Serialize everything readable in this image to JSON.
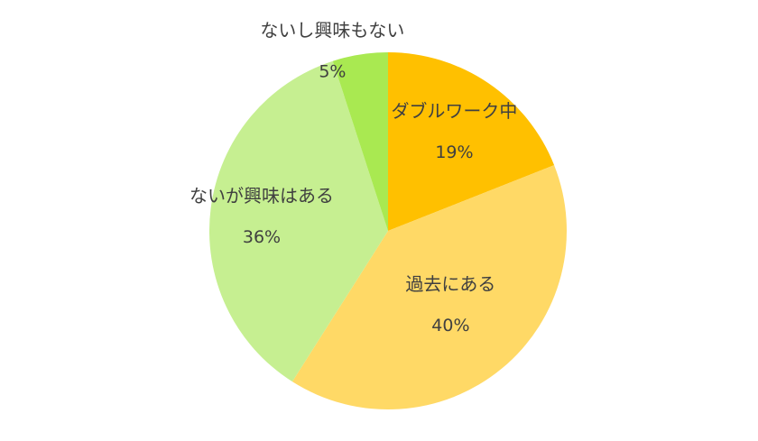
{
  "chart_data": {
    "type": "pie",
    "title": "",
    "slices": [
      {
        "label": "ダブルワーク中",
        "value": 19,
        "value_label": "19%",
        "color": "#FFC000"
      },
      {
        "label": "過去にある",
        "value": 40,
        "value_label": "40%",
        "color": "#FFD966"
      },
      {
        "label": "ないが興味はある",
        "value": 36,
        "value_label": "36%",
        "color": "#C6EF91"
      },
      {
        "label": "ないし興味もない",
        "value": 5,
        "value_label": "5%",
        "color": "#A9E951"
      }
    ],
    "legend": "none",
    "start_angle": "12 o'clock",
    "direction": "clockwise"
  }
}
